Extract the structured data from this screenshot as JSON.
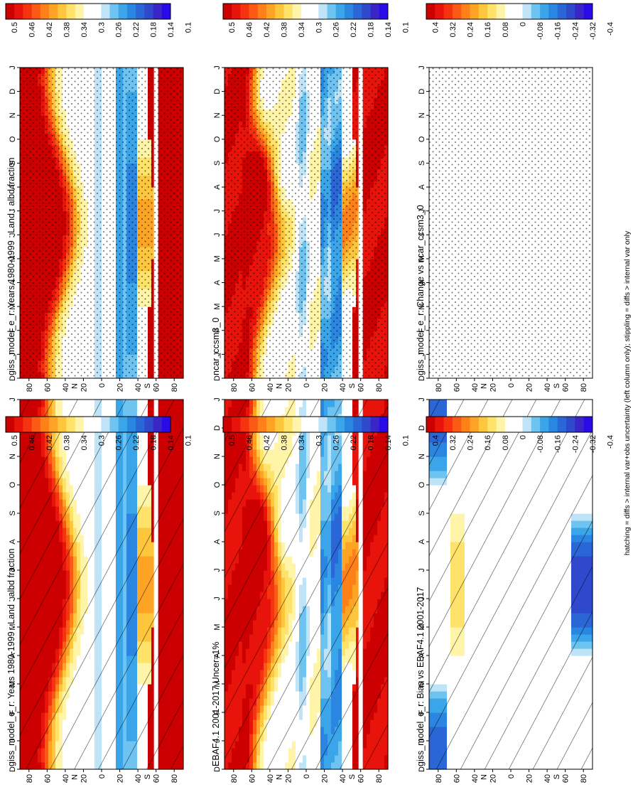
{
  "footer_note": "hatching = diffs > internal var+obs uncertainty (left column only); stippling = diffs > internal var only",
  "colors": {
    "albedo_scale": [
      "#cc0000",
      "#e8140c",
      "#f5330f",
      "#fb5a14",
      "#fd8019",
      "#fea424",
      "#fec63c",
      "#fee26a",
      "#fff4a8",
      "#ffffff",
      "#ffffff",
      "#bfe3f7",
      "#6fc3f0",
      "#3aa5e8",
      "#2a86e0",
      "#2b66d6",
      "#3048cc",
      "#3a26c6",
      "#2a0ae6"
    ],
    "diff_scale": [
      "#cc0000",
      "#e8140c",
      "#f5330f",
      "#fb5a14",
      "#fd8019",
      "#fea424",
      "#fec63c",
      "#fee26a",
      "#fff4a8",
      "#ffffff",
      "#ffffff",
      "#bfe3f7",
      "#6fc3f0",
      "#3aa5e8",
      "#2a86e0",
      "#2b66d6",
      "#3048cc",
      "#3a26c6",
      "#2a0ae6"
    ]
  },
  "colorbars": {
    "albedo_labels": [
      "0.5",
      "0.46",
      "0.42",
      "0.38",
      "0.34",
      "0.3",
      "0.26",
      "0.22",
      "0.18",
      "0.14",
      "0.1"
    ],
    "diff_labels": [
      "0.4",
      "0.32",
      "0.24",
      "0.16",
      "0.08",
      "0",
      "-0.08",
      "-0.16",
      "-0.24",
      "-0.32",
      "-0.4"
    ]
  },
  "chart_data": [
    {
      "type": "heatmap",
      "title": "giss_model_e_r: Years 1980-1999 : Land : albd fraction",
      "x_categories": [
        "D",
        "J",
        "F",
        "M",
        "A",
        "M",
        "J",
        "J",
        "A",
        "S",
        "O",
        "N",
        "D",
        "J"
      ],
      "y_tick_labels": [
        "80",
        "60",
        "40",
        "20",
        "0",
        "20",
        "40",
        "60",
        "80"
      ],
      "y_hemisphere_labels": [
        "N",
        "S"
      ],
      "colorbar_labels": [
        "0.5",
        "0.46",
        "0.42",
        "0.38",
        "0.34",
        "0.3",
        "0.26",
        "0.22",
        "0.18",
        "0.14",
        "0.1"
      ],
      "overlay": "hatching",
      "field": "albedo"
    },
    {
      "type": "heatmap",
      "title": "EBAF4.1 2001-2017 Uncer=1%",
      "x_categories": [
        "D",
        "J",
        "F",
        "M",
        "A",
        "M",
        "J",
        "J",
        "A",
        "S",
        "O",
        "N",
        "D",
        "J"
      ],
      "y_tick_labels": [
        "80",
        "60",
        "40",
        "20",
        "0",
        "20",
        "40",
        "60",
        "80"
      ],
      "y_hemisphere_labels": [
        "N",
        "S"
      ],
      "colorbar_labels": [
        "0.5",
        "0.46",
        "0.42",
        "0.38",
        "0.34",
        "0.3",
        "0.26",
        "0.22",
        "0.18",
        "0.14",
        "0.1"
      ],
      "overlay": "hatching",
      "field": "albedo"
    },
    {
      "type": "heatmap",
      "title": "giss_model_e_r: Bias vs EBAF4.1 2001-2017",
      "x_categories": [
        "D",
        "J",
        "F",
        "M",
        "A",
        "M",
        "J",
        "J",
        "A",
        "S",
        "O",
        "N",
        "D",
        "J"
      ],
      "y_tick_labels": [
        "80",
        "60",
        "40",
        "20",
        "0",
        "20",
        "40",
        "60",
        "80"
      ],
      "y_hemisphere_labels": [
        "N",
        "S"
      ],
      "colorbar_labels": [
        "0.4",
        "0.32",
        "0.24",
        "0.16",
        "0.08",
        "0",
        "-0.08",
        "-0.16",
        "-0.24",
        "-0.32",
        "-0.4"
      ],
      "overlay": "hatching",
      "field": "bias"
    },
    {
      "type": "heatmap",
      "title": "giss_model_e_r: Years 1980-1999 : Land : albd fraction",
      "x_categories": [
        "D",
        "J",
        "F",
        "M",
        "A",
        "M",
        "J",
        "J",
        "A",
        "S",
        "O",
        "N",
        "D",
        "J"
      ],
      "y_tick_labels": [
        "80",
        "60",
        "40",
        "20",
        "0",
        "20",
        "40",
        "60",
        "80"
      ],
      "y_hemisphere_labels": [
        "N",
        "S"
      ],
      "colorbar_labels": [
        "0.5",
        "0.46",
        "0.42",
        "0.38",
        "0.34",
        "0.3",
        "0.26",
        "0.22",
        "0.18",
        "0.14",
        "0.1"
      ],
      "overlay": "stippling",
      "field": "albedo"
    },
    {
      "type": "heatmap",
      "title": "ncar_ccsm3_0",
      "x_categories": [
        "D",
        "J",
        "F",
        "M",
        "A",
        "M",
        "J",
        "J",
        "A",
        "S",
        "O",
        "N",
        "D",
        "J"
      ],
      "y_tick_labels": [
        "80",
        "60",
        "40",
        "20",
        "0",
        "20",
        "40",
        "60",
        "80"
      ],
      "y_hemisphere_labels": [
        "N",
        "S"
      ],
      "colorbar_labels": [
        "0.5",
        "0.46",
        "0.42",
        "0.38",
        "0.34",
        "0.3",
        "0.26",
        "0.22",
        "0.18",
        "0.14",
        "0.1"
      ],
      "overlay": "stippling",
      "field": "albedo"
    },
    {
      "type": "heatmap",
      "title": "giss_model_e_r: Change vs ncar_ccsm3_0",
      "x_categories": [
        "D",
        "J",
        "F",
        "M",
        "A",
        "M",
        "J",
        "J",
        "A",
        "S",
        "O",
        "N",
        "D",
        "J"
      ],
      "y_tick_labels": [
        "80",
        "60",
        "40",
        "20",
        "0",
        "20",
        "40",
        "60",
        "80"
      ],
      "y_hemisphere_labels": [
        "N",
        "S"
      ],
      "colorbar_labels": [
        "0.4",
        "0.32",
        "0.24",
        "0.16",
        "0.08",
        "0",
        "-0.08",
        "-0.16",
        "-0.24",
        "-0.32",
        "-0.4"
      ],
      "overlay": "stippling",
      "field": "change"
    }
  ]
}
